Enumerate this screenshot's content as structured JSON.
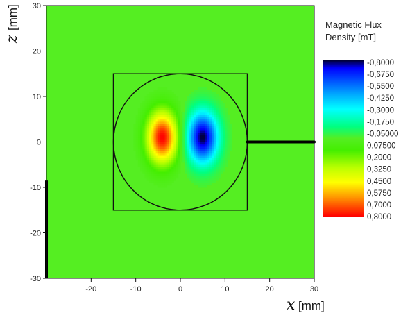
{
  "chart_data": {
    "type": "heatmap",
    "title": "",
    "xlabel": {
      "variable": "x",
      "unit": "[mm]"
    },
    "ylabel": {
      "variable": "z",
      "unit": "[mm]"
    },
    "xlim": [
      -30,
      30
    ],
    "ylim": [
      -30,
      30
    ],
    "x_ticks": [
      -20,
      -10,
      0,
      10,
      20,
      30
    ],
    "y_ticks": [
      -30,
      -20,
      -10,
      0,
      10,
      20,
      30
    ],
    "background_value": 0.0,
    "features": {
      "positive_lobe": {
        "x": -4,
        "z": 1,
        "peak": 0.8,
        "sigma_x": 2.4,
        "sigma_z": 4.0
      },
      "negative_lobe": {
        "x": 5,
        "z": 1,
        "peak": -0.8,
        "sigma_x": 2.4,
        "sigma_z": 4.0
      }
    },
    "overlays": {
      "square": {
        "xmin": -15,
        "xmax": 15,
        "zmin": -15,
        "zmax": 15
      },
      "circle": {
        "cx": 0,
        "cz": 0,
        "r": 15
      },
      "probe_line": {
        "x1": 15,
        "x2": 30,
        "z": 0
      },
      "left_edge_line": {
        "x": -30,
        "z1": -30,
        "z2": -8.5
      }
    },
    "colorbar": {
      "title_line1": "Magnetic Flux",
      "title_line2": "Density [mT]",
      "labels": [
        "-0,8000",
        "-0,6750",
        "-0,5500",
        "-0,4250",
        "-0,3000",
        "-0,1750",
        "-0,05000",
        "0,07500",
        "0,2000",
        "0,3250",
        "0,4500",
        "0,5750",
        "0,7000",
        "0,8000"
      ],
      "stops": [
        {
          "v": -0.8,
          "color": "#000033"
        },
        {
          "v": -0.72,
          "color": "#0000ff"
        },
        {
          "v": -0.45,
          "color": "#00aaff"
        },
        {
          "v": -0.3,
          "color": "#00ffff"
        },
        {
          "v": -0.12,
          "color": "#00ff80"
        },
        {
          "v": 0.0,
          "color": "#55ee22"
        },
        {
          "v": 0.12,
          "color": "#44ee00"
        },
        {
          "v": 0.3,
          "color": "#bbff00"
        },
        {
          "v": 0.45,
          "color": "#ffff00"
        },
        {
          "v": 0.6,
          "color": "#ff9900"
        },
        {
          "v": 0.8,
          "color": "#ff0000"
        }
      ]
    }
  }
}
